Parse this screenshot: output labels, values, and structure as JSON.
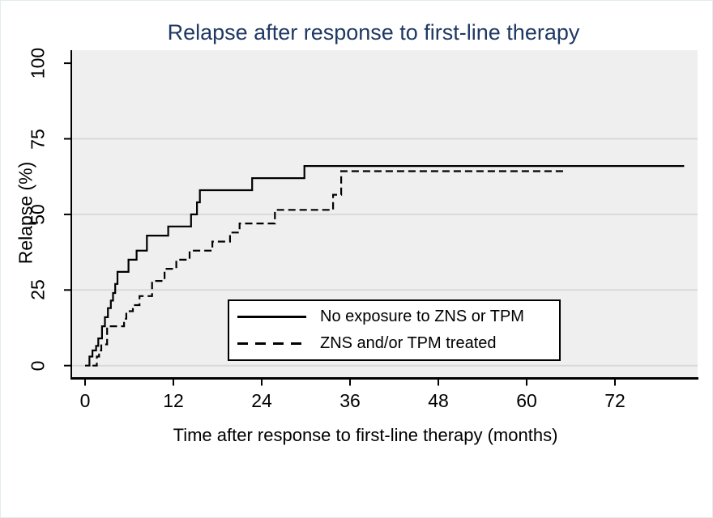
{
  "title": {
    "text": "Relapse after response to first-line therapy",
    "color": "#1f3864"
  },
  "y_axis": {
    "title": "Relapse (%)",
    "tick_labels": [
      "0",
      "25",
      "50",
      "75",
      "100"
    ]
  },
  "x_axis": {
    "title": "Time after response to first-line therapy (months)",
    "tick_labels": [
      "0",
      "12",
      "24",
      "36",
      "48",
      "60",
      "72"
    ]
  },
  "legend": {
    "items": [
      {
        "label": "No exposure to ZNS or TPM",
        "line_style": "solid"
      },
      {
        "label": "ZNS and/or TPM treated",
        "line_style": "dashed"
      }
    ]
  },
  "colors": {
    "plot_background": "#efefef",
    "gridline": "#d9d9d9",
    "axis": "#000000",
    "curve": "#000000",
    "title": "#1f3864"
  },
  "chart_data": {
    "type": "line",
    "subtype": "kaplan-meier-step",
    "title": "Relapse after response to first-line therapy",
    "xlabel": "Time after response to first-line therapy (months)",
    "ylabel": "Relapse (%)",
    "xlim": [
      0,
      83
    ],
    "ylim": [
      0,
      100
    ],
    "x_ticks": [
      0,
      12,
      24,
      36,
      48,
      60,
      72
    ],
    "y_ticks": [
      0,
      25,
      50,
      75,
      100
    ],
    "grid": "horizontal gridlines at 0, 25, 50 and 75 only",
    "legend_position": "inside lower-right of plot",
    "series": [
      {
        "name": "No exposure to ZNS or TPM",
        "style": "solid",
        "color": "#000000",
        "end_x": 81.4,
        "points": [
          [
            0,
            0
          ],
          [
            0.6,
            3
          ],
          [
            1.0,
            5
          ],
          [
            1.5,
            6.5
          ],
          [
            1.8,
            9
          ],
          [
            2.3,
            13
          ],
          [
            2.7,
            16
          ],
          [
            3.1,
            19
          ],
          [
            3.5,
            21.5
          ],
          [
            3.8,
            24
          ],
          [
            4.1,
            27
          ],
          [
            4.4,
            31
          ],
          [
            5.9,
            35
          ],
          [
            7.0,
            38
          ],
          [
            8.4,
            43
          ],
          [
            11.3,
            46
          ],
          [
            14.4,
            50
          ],
          [
            15.2,
            54
          ],
          [
            15.6,
            58
          ],
          [
            22.7,
            62
          ],
          [
            29.8,
            66
          ]
        ]
      },
      {
        "name": "ZNS and/or TPM treated",
        "style": "dashed",
        "color": "#000000",
        "end_x": 65.4,
        "points": [
          [
            1.0,
            0
          ],
          [
            1.6,
            3
          ],
          [
            1.9,
            5
          ],
          [
            2.2,
            7
          ],
          [
            3.0,
            13
          ],
          [
            5.3,
            15.5
          ],
          [
            5.6,
            18
          ],
          [
            6.5,
            20
          ],
          [
            7.4,
            23
          ],
          [
            9.1,
            28
          ],
          [
            10.8,
            32
          ],
          [
            12.4,
            35
          ],
          [
            14.2,
            38
          ],
          [
            17.3,
            41
          ],
          [
            19.7,
            44
          ],
          [
            21.0,
            47
          ],
          [
            25.8,
            51.5
          ],
          [
            33.7,
            56.5
          ],
          [
            34.8,
            64.3
          ]
        ]
      }
    ]
  }
}
